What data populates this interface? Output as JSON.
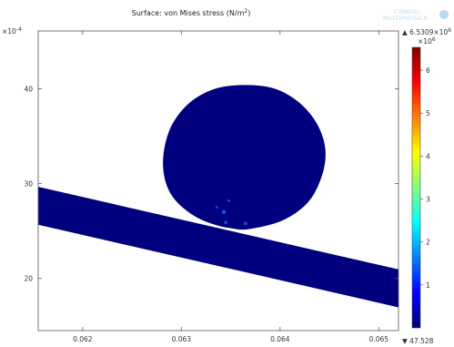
{
  "chart_data": {
    "type": "heatmap",
    "title": "Surface: von Mises stress",
    "title_unit": "N/m",
    "title_unit_exp": "2",
    "x": {
      "min": 0.06155,
      "max": 0.0652,
      "ticks": [
        0.062,
        0.063,
        0.064,
        0.065
      ],
      "tick_labels": [
        "0.062",
        "0.063",
        "0.064",
        "0.065"
      ]
    },
    "y": {
      "min": 0.00145,
      "max": 0.00461,
      "multiplier_text": "×10",
      "multiplier_exp": "-4",
      "ticks": [
        0.002,
        0.003,
        0.004
      ],
      "tick_labels": [
        "20",
        "30",
        "40"
      ]
    },
    "colorbar": {
      "colormap": "rainbow",
      "colors": [
        "#00007f",
        "#0000ff",
        "#007fff",
        "#00ffff",
        "#7fff7f",
        "#ffff00",
        "#ff7f00",
        "#ff0000",
        "#7f0000"
      ],
      "min": 47.528,
      "max": 6530900,
      "max_label": "6.5309×10",
      "max_label_exp": "6",
      "min_label": "47.528",
      "multiplier_text": "×10",
      "multiplier_exp": "6",
      "ticks": [
        1,
        2,
        3,
        4,
        5,
        6
      ],
      "tick_labels": [
        "1",
        "2",
        "3",
        "4",
        "5",
        "6"
      ],
      "max_marker": "▲",
      "min_marker": "▼"
    },
    "domain_color": "#00007f",
    "hotspot_color": "#1e5fff",
    "background": "#ffffff",
    "grid": false
  },
  "watermark": {
    "line1": "COMSOL",
    "line2": "MULTIPHYSICS"
  }
}
